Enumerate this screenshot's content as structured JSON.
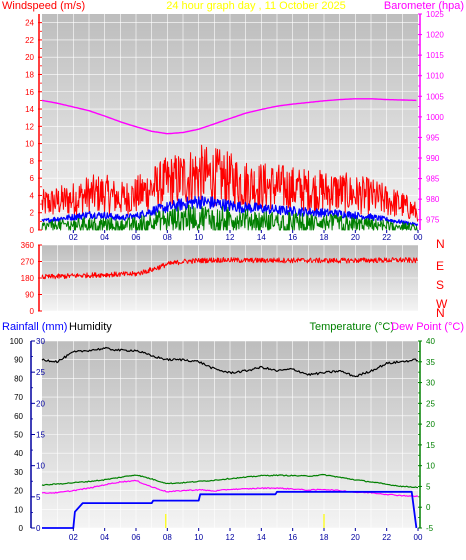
{
  "header": {
    "title": "24 hour graph day , 11 October 2025",
    "left_label": "Windspeed (m/s)",
    "right_label": "Barometer (hpa)"
  },
  "colors": {
    "red": "#ff0000",
    "magenta": "#ff00ff",
    "green": "#008000",
    "blue": "#0000ff",
    "navy": "#0000a0",
    "black": "#000000",
    "yellow": "#ffff00",
    "plot_bg_top": "#bdbdbd",
    "plot_bg_bottom": "#f4f4f4",
    "grid": "#ffffff"
  },
  "chart_data": [
    {
      "type": "line",
      "panel": "wind-barometer",
      "x_ticks": [
        "02",
        "04",
        "06",
        "08",
        "10",
        "12",
        "14",
        "16",
        "18",
        "20",
        "22",
        "00"
      ],
      "left_axis": {
        "title": "Windspeed (m/s)",
        "ylim": [
          0,
          25
        ],
        "ticks": [
          "0",
          "2",
          "4",
          "6",
          "8",
          "10",
          "12",
          "14",
          "16",
          "18",
          "20",
          "22",
          "24"
        ]
      },
      "right_axis": {
        "title": "Barometer (hpa)",
        "ylim": [
          972.5,
          1025
        ],
        "ticks": [
          "975",
          "980",
          "985",
          "990",
          "995",
          "1000",
          "1005",
          "1010",
          "1015",
          "1020",
          "1025"
        ]
      },
      "series": [
        {
          "axis": "right",
          "color": "#ff00ff",
          "x": [
            0,
            1,
            2,
            3,
            4,
            5,
            6,
            7,
            8,
            9,
            10,
            11,
            12,
            13,
            14,
            15,
            16,
            17,
            18,
            19,
            20,
            21,
            22,
            23,
            24
          ],
          "values": [
            1004.0,
            1003.3,
            1002.4,
            1001.5,
            1000.2,
            998.8,
            997.6,
            996.5,
            995.9,
            996.2,
            997.0,
            998.3,
            999.6,
            1000.9,
            1001.8,
            1002.6,
            1003.1,
            1003.5,
            1003.9,
            1004.2,
            1004.4,
            1004.4,
            1004.2,
            1004.1,
            1004.0
          ]
        },
        {
          "axis": "left",
          "color": "#ff0000",
          "kind": "gust",
          "x": [
            0,
            1,
            2,
            3,
            4,
            5,
            6,
            7,
            8,
            9,
            10,
            11,
            12,
            13,
            14,
            15,
            16,
            17,
            18,
            19,
            20,
            21,
            22,
            23,
            24
          ],
          "values": [
            3.0,
            3.3,
            3.6,
            4.1,
            4.2,
            3.6,
            4.0,
            4.8,
            5.5,
            6.0,
            6.4,
            6.2,
            5.8,
            5.3,
            5.1,
            5.0,
            4.8,
            4.6,
            4.5,
            4.4,
            4.1,
            3.9,
            3.4,
            2.9,
            2.0
          ]
        },
        {
          "axis": "left",
          "color": "#0000ff",
          "kind": "average",
          "x": [
            0,
            1,
            2,
            3,
            4,
            5,
            6,
            7,
            8,
            9,
            10,
            11,
            12,
            13,
            14,
            15,
            16,
            17,
            18,
            19,
            20,
            21,
            22,
            23,
            24
          ],
          "values": [
            1.0,
            1.3,
            1.5,
            1.8,
            1.7,
            1.4,
            1.6,
            2.2,
            2.6,
            3.0,
            3.3,
            3.1,
            2.8,
            2.6,
            2.5,
            2.3,
            2.2,
            2.1,
            2.0,
            1.9,
            1.7,
            1.5,
            1.2,
            0.9,
            0.6
          ]
        },
        {
          "axis": "left",
          "color": "#008000",
          "kind": "speed",
          "x": [
            0,
            1,
            2,
            3,
            4,
            5,
            6,
            7,
            8,
            9,
            10,
            11,
            12,
            13,
            14,
            15,
            16,
            17,
            18,
            19,
            20,
            21,
            22,
            23,
            24
          ],
          "values": [
            0.5,
            0.6,
            0.7,
            0.8,
            0.8,
            0.7,
            0.8,
            1.1,
            1.3,
            1.5,
            1.6,
            1.5,
            1.4,
            1.3,
            1.2,
            1.1,
            1.1,
            1.0,
            1.0,
            0.9,
            0.8,
            0.7,
            0.6,
            0.5,
            0.3
          ]
        }
      ]
    },
    {
      "type": "line",
      "panel": "wind-direction",
      "ylim": [
        0,
        360
      ],
      "left_ticks": [
        "0",
        "90",
        "180",
        "270",
        "360"
      ],
      "right_labels": [
        "N",
        "W",
        "S",
        "E",
        "N"
      ],
      "series": [
        {
          "color": "#ff0000",
          "x": [
            0,
            1,
            2,
            3,
            4,
            5,
            6,
            7,
            8,
            9,
            10,
            11,
            12,
            13,
            14,
            15,
            16,
            17,
            18,
            19,
            20,
            21,
            22,
            23,
            24
          ],
          "values": [
            185,
            188,
            192,
            195,
            198,
            200,
            202,
            225,
            255,
            270,
            275,
            278,
            278,
            276,
            276,
            277,
            276,
            276,
            275,
            275,
            276,
            277,
            277,
            278,
            275
          ]
        }
      ]
    },
    {
      "type": "line",
      "panel": "rain-humidity-temperature",
      "x_ticks": [
        "02",
        "04",
        "06",
        "08",
        "10",
        "12",
        "14",
        "16",
        "18",
        "20",
        "22",
        "00"
      ],
      "left_axis": {
        "title": "Humidity",
        "ylim": [
          0,
          100
        ],
        "ticks": [
          "0",
          "10",
          "20",
          "30",
          "40",
          "50",
          "60",
          "70",
          "80",
          "90",
          "100"
        ]
      },
      "rain_axis": {
        "title": "Rainfall (mm)",
        "ylim": [
          0,
          30
        ],
        "ticks": [
          "0",
          "5",
          "10",
          "15",
          "20",
          "25",
          "30"
        ]
      },
      "right_axis": {
        "title": "Temperature (°C)",
        "ylim": [
          -5,
          40
        ],
        "ticks": [
          "-5",
          "0",
          "5",
          "10",
          "15",
          "20",
          "25",
          "30",
          "35",
          "40"
        ]
      },
      "dew_point_title": "Dew Point (°C)",
      "series": [
        {
          "axis": "left",
          "color": "#000000",
          "kind": "humidity",
          "x": [
            0,
            1,
            2,
            3,
            4,
            5,
            6,
            7,
            8,
            9,
            10,
            11,
            12,
            13,
            14,
            15,
            16,
            17,
            18,
            19,
            20,
            21,
            22,
            23,
            24
          ],
          "values": [
            90,
            89,
            94,
            95,
            96,
            95,
            95,
            92,
            90,
            90,
            89,
            85,
            83,
            84,
            86,
            84,
            85,
            82,
            83,
            84,
            81,
            84,
            88,
            89,
            90
          ]
        },
        {
          "axis": "right",
          "color": "#008000",
          "kind": "temperature",
          "x": [
            0,
            1,
            2,
            3,
            4,
            5,
            6,
            7,
            8,
            9,
            10,
            11,
            12,
            13,
            14,
            15,
            16,
            17,
            18,
            19,
            20,
            21,
            22,
            23,
            24
          ],
          "values": [
            5.3,
            5.6,
            5.9,
            6.2,
            6.6,
            7.2,
            7.8,
            6.8,
            5.7,
            5.9,
            6.2,
            6.5,
            6.9,
            7.2,
            7.6,
            7.7,
            7.6,
            7.5,
            7.8,
            7.2,
            6.6,
            6.1,
            5.5,
            5.0,
            4.8
          ]
        },
        {
          "axis": "right",
          "color": "#ff00ff",
          "kind": "dew_point",
          "x": [
            0,
            1,
            2,
            3,
            4,
            5,
            6,
            7,
            8,
            9,
            10,
            11,
            12,
            13,
            14,
            15,
            16,
            17,
            18,
            19,
            20,
            21,
            22,
            23,
            24
          ],
          "values": [
            3.4,
            3.5,
            4.0,
            4.6,
            5.4,
            6.1,
            6.4,
            4.9,
            3.7,
            4.0,
            4.2,
            3.9,
            4.3,
            4.4,
            4.6,
            4.6,
            4.4,
            4.1,
            4.3,
            4.0,
            3.6,
            3.5,
            3.1,
            2.8,
            2.6
          ]
        },
        {
          "axis": "rain",
          "color": "#0000ff",
          "kind": "rainfall",
          "x": [
            0,
            2.0,
            2.1,
            2.6,
            6.4,
            7.0,
            7.1,
            10.0,
            10.1,
            14.9,
            15.0,
            23.6,
            23.9
          ],
          "values": [
            0,
            0,
            2.6,
            4.0,
            4.0,
            4.0,
            4.4,
            4.4,
            5.4,
            5.4,
            5.8,
            5.8,
            0
          ]
        }
      ]
    }
  ]
}
